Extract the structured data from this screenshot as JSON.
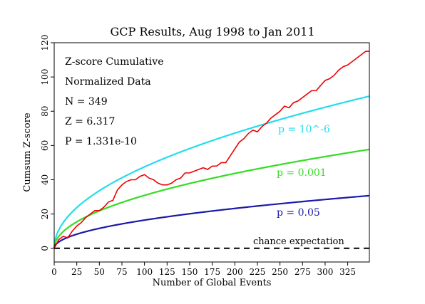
{
  "chart_data": {
    "type": "line",
    "title": "GCP Results, Aug 1998 to Jan 2011",
    "xlabel": "Number of Global Events",
    "ylabel": "Cumsum Z-score",
    "xlim": [
      0,
      349
    ],
    "ylim": [
      -8,
      120
    ],
    "x_ticks": [
      0,
      25,
      50,
      75,
      100,
      125,
      150,
      175,
      200,
      225,
      250,
      275,
      300,
      325
    ],
    "y_ticks": [
      0,
      20,
      40,
      60,
      80,
      100,
      120
    ],
    "grid": false,
    "stats": [
      "Z-score Cumulative",
      "Normalized Data",
      "N = 349",
      "Z = 6.317",
      "P = 1.331e-10"
    ],
    "series": [
      {
        "name": "cumulative",
        "color": "#ee0000",
        "x": [
          0,
          5,
          10,
          15,
          20,
          25,
          30,
          35,
          40,
          45,
          50,
          55,
          60,
          65,
          70,
          75,
          80,
          85,
          90,
          95,
          100,
          105,
          110,
          115,
          120,
          125,
          130,
          135,
          140,
          145,
          150,
          155,
          160,
          165,
          170,
          175,
          180,
          185,
          190,
          195,
          200,
          205,
          210,
          215,
          220,
          225,
          230,
          235,
          240,
          245,
          250,
          255,
          260,
          265,
          270,
          275,
          280,
          285,
          290,
          295,
          300,
          305,
          310,
          315,
          320,
          325,
          330,
          335,
          340,
          345,
          349
        ],
        "y": [
          0,
          5,
          7,
          6,
          10,
          13,
          15,
          18,
          20,
          22,
          22,
          24,
          27,
          28,
          34,
          37,
          39,
          40,
          40,
          42,
          43,
          41,
          40,
          38,
          37,
          37,
          38,
          40,
          41,
          44,
          44,
          45,
          46,
          47,
          46,
          48,
          48,
          50,
          50,
          54,
          58,
          62,
          64,
          67,
          69,
          68,
          71,
          73,
          76,
          78,
          80,
          83,
          82,
          85,
          86,
          88,
          90,
          92,
          92,
          95,
          98,
          99,
          101,
          104,
          106,
          107,
          109,
          111,
          113,
          115,
          115
        ]
      },
      {
        "name": "",
        "label": "p = 10^-6",
        "color": "#22ddee",
        "formula_coef": 4.753
      },
      {
        "name": "",
        "label": "p = 0.001",
        "color": "#33dd22",
        "formula_coef": 3.09
      },
      {
        "name": "",
        "label": "p = 0.05",
        "color": "#1a1aaa",
        "formula_coef": 1.645
      }
    ],
    "baseline": {
      "label": "chance expectation",
      "y": 0,
      "color": "#000000",
      "dashed": true
    }
  }
}
